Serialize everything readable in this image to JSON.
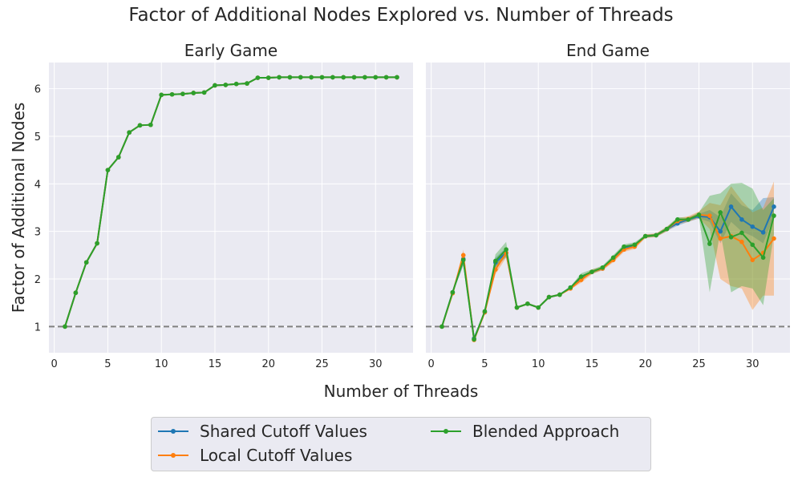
{
  "title": "Factor of Additional Nodes Explored vs. Number of Threads",
  "xlabel": "Number of Threads",
  "ylabel": "Factor of Additional Nodes",
  "colors": {
    "shared": "#1f77b4",
    "local": "#ff7f0e",
    "blended": "#2ca02c",
    "background": "#eaeaf2",
    "grid": "#ffffff",
    "reference": "#808080"
  },
  "legend": {
    "shared": "Shared Cutoff Values",
    "local": "Local Cutoff Values",
    "blended": "Blended Approach"
  },
  "chart_data": [
    {
      "type": "line",
      "title": "Early Game",
      "xlabel": "Number of Threads",
      "ylabel": "Factor of Additional Nodes",
      "xlim": [
        -0.5,
        33.5
      ],
      "ylim": [
        0.45,
        6.55
      ],
      "xticks": [
        0,
        5,
        10,
        15,
        20,
        25,
        30
      ],
      "yticks": [
        1,
        2,
        3,
        4,
        5,
        6
      ],
      "grid": true,
      "reference_line": 1,
      "x": [
        1,
        2,
        3,
        4,
        5,
        6,
        7,
        8,
        9,
        10,
        11,
        12,
        13,
        14,
        15,
        16,
        17,
        18,
        19,
        20,
        21,
        22,
        23,
        24,
        25,
        26,
        27,
        28,
        29,
        30,
        31,
        32
      ],
      "series": [
        {
          "name": "Shared Cutoff Values",
          "color": "#1f77b4",
          "values": [
            1.0,
            1.71,
            2.35,
            2.75,
            4.29,
            4.56,
            5.08,
            5.23,
            5.24,
            5.87,
            5.88,
            5.89,
            5.91,
            5.92,
            6.07,
            6.08,
            6.1,
            6.11,
            6.23,
            6.23,
            6.24,
            6.24,
            6.24,
            6.24,
            6.24,
            6.24,
            6.24,
            6.24,
            6.24,
            6.24,
            6.24,
            6.24
          ]
        },
        {
          "name": "Local Cutoff Values",
          "color": "#ff7f0e",
          "values": [
            1.0,
            1.71,
            2.35,
            2.75,
            4.29,
            4.56,
            5.08,
            5.23,
            5.24,
            5.87,
            5.88,
            5.89,
            5.91,
            5.92,
            6.07,
            6.08,
            6.1,
            6.11,
            6.23,
            6.23,
            6.24,
            6.24,
            6.24,
            6.24,
            6.24,
            6.24,
            6.24,
            6.24,
            6.24,
            6.24,
            6.24,
            6.24
          ]
        },
        {
          "name": "Blended Approach",
          "color": "#2ca02c",
          "values": [
            1.0,
            1.71,
            2.35,
            2.75,
            4.29,
            4.56,
            5.08,
            5.23,
            5.24,
            5.87,
            5.88,
            5.89,
            5.91,
            5.92,
            6.07,
            6.08,
            6.1,
            6.11,
            6.23,
            6.23,
            6.24,
            6.24,
            6.24,
            6.24,
            6.24,
            6.24,
            6.24,
            6.24,
            6.24,
            6.24,
            6.24,
            6.24
          ]
        }
      ]
    },
    {
      "type": "line",
      "title": "End Game",
      "xlabel": "Number of Threads",
      "xlim": [
        -0.5,
        33.5
      ],
      "ylim": [
        0.45,
        6.55
      ],
      "xticks": [
        0,
        5,
        10,
        15,
        20,
        25,
        30
      ],
      "grid": true,
      "reference_line": 1,
      "x": [
        1,
        2,
        3,
        4,
        5,
        6,
        7,
        8,
        9,
        10,
        11,
        12,
        13,
        14,
        15,
        16,
        17,
        18,
        19,
        20,
        21,
        22,
        23,
        24,
        25,
        26,
        27,
        28,
        29,
        30,
        31,
        32
      ],
      "series": [
        {
          "name": "Shared Cutoff Values",
          "color": "#1f77b4",
          "values": [
            1.0,
            1.72,
            2.42,
            0.75,
            1.3,
            2.35,
            2.55,
            1.4,
            1.48,
            1.4,
            1.62,
            1.67,
            1.82,
            2.0,
            2.15,
            2.22,
            2.42,
            2.65,
            2.7,
            2.9,
            2.92,
            3.05,
            3.17,
            3.25,
            3.32,
            3.3,
            3.0,
            3.52,
            3.25,
            3.1,
            2.98,
            3.52
          ],
          "lower": [
            1.0,
            1.7,
            2.3,
            0.7,
            1.28,
            2.25,
            2.45,
            1.38,
            1.46,
            1.38,
            1.6,
            1.65,
            1.8,
            1.97,
            2.12,
            2.19,
            2.38,
            2.6,
            2.66,
            2.87,
            2.89,
            3.01,
            3.12,
            3.2,
            3.27,
            3.2,
            2.75,
            3.2,
            3.0,
            2.9,
            2.75,
            3.3
          ],
          "upper": [
            1.0,
            1.74,
            2.5,
            0.8,
            1.32,
            2.45,
            2.65,
            1.42,
            1.5,
            1.42,
            1.64,
            1.69,
            1.84,
            2.03,
            2.18,
            2.25,
            2.46,
            2.7,
            2.74,
            2.93,
            2.95,
            3.09,
            3.22,
            3.3,
            3.37,
            3.45,
            3.3,
            3.8,
            3.55,
            3.45,
            3.7,
            3.72
          ]
        },
        {
          "name": "Local Cutoff Values",
          "color": "#ff7f0e",
          "values": [
            1.0,
            1.7,
            2.5,
            0.72,
            1.3,
            2.2,
            2.55,
            1.4,
            1.48,
            1.4,
            1.62,
            1.67,
            1.8,
            1.98,
            2.15,
            2.22,
            2.4,
            2.62,
            2.68,
            2.9,
            2.92,
            3.05,
            3.22,
            3.26,
            3.35,
            3.33,
            2.85,
            2.9,
            2.78,
            2.4,
            2.55,
            2.85
          ],
          "lower": [
            1.0,
            1.68,
            2.35,
            0.68,
            1.28,
            2.1,
            2.45,
            1.38,
            1.46,
            1.38,
            1.6,
            1.65,
            1.78,
            1.92,
            2.1,
            2.18,
            2.35,
            2.57,
            2.63,
            2.86,
            2.88,
            3.0,
            3.15,
            3.2,
            3.28,
            3.05,
            2.0,
            1.85,
            1.8,
            1.35,
            1.65,
            1.65
          ],
          "upper": [
            1.0,
            1.72,
            2.62,
            0.76,
            1.32,
            2.3,
            2.65,
            1.42,
            1.5,
            1.42,
            1.64,
            1.69,
            1.82,
            2.04,
            2.2,
            2.26,
            2.45,
            2.67,
            2.73,
            2.94,
            2.96,
            3.1,
            3.28,
            3.32,
            3.42,
            3.6,
            3.55,
            3.95,
            3.65,
            3.4,
            3.5,
            4.05
          ]
        },
        {
          "name": "Blended Approach",
          "color": "#2ca02c",
          "values": [
            1.0,
            1.72,
            2.4,
            0.73,
            1.32,
            2.38,
            2.62,
            1.4,
            1.48,
            1.4,
            1.62,
            1.67,
            1.82,
            2.05,
            2.15,
            2.24,
            2.45,
            2.68,
            2.72,
            2.9,
            2.92,
            3.05,
            3.25,
            3.25,
            3.35,
            2.74,
            3.4,
            2.88,
            2.97,
            2.72,
            2.45,
            3.33
          ],
          "lower": [
            1.0,
            1.7,
            2.28,
            0.7,
            1.3,
            2.25,
            2.48,
            1.38,
            1.46,
            1.38,
            1.6,
            1.65,
            1.8,
            2.0,
            2.11,
            2.2,
            2.4,
            2.63,
            2.67,
            2.87,
            2.89,
            3.01,
            3.2,
            3.21,
            3.3,
            1.72,
            3.0,
            1.72,
            1.85,
            1.8,
            1.45,
            2.95
          ],
          "upper": [
            1.0,
            1.74,
            2.52,
            0.76,
            1.34,
            2.52,
            2.78,
            1.42,
            1.5,
            1.42,
            1.64,
            1.69,
            1.84,
            2.12,
            2.2,
            2.28,
            2.5,
            2.73,
            2.77,
            2.93,
            2.95,
            3.09,
            3.3,
            3.29,
            3.4,
            3.75,
            3.8,
            4.0,
            4.02,
            3.9,
            3.45,
            3.7
          ]
        }
      ]
    }
  ]
}
